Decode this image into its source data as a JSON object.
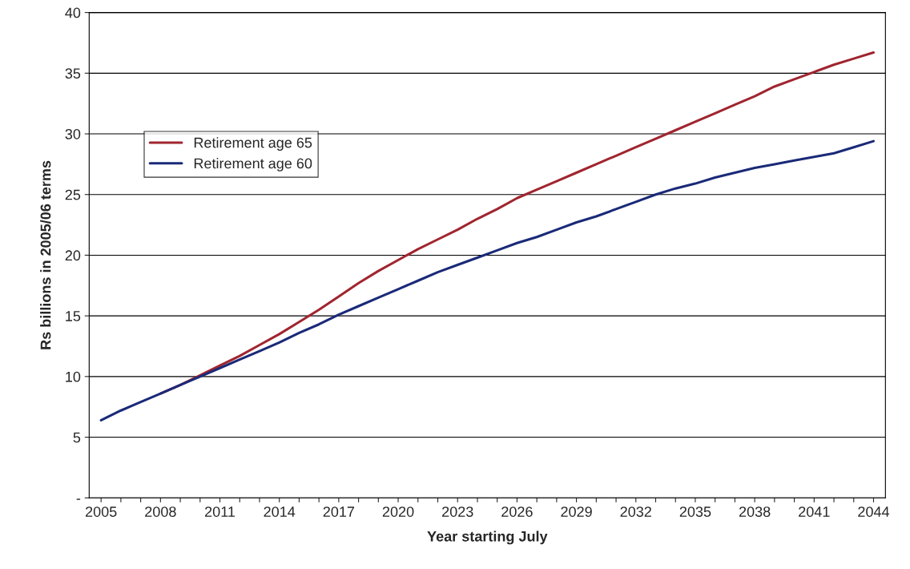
{
  "chart_data": {
    "type": "line",
    "xlabel": "Year starting July",
    "ylabel": "Rs billions in 2005/06 terms",
    "categories": [
      "2005",
      null,
      null,
      "2008",
      null,
      null,
      "2011",
      null,
      null,
      "2014",
      null,
      null,
      "2017",
      null,
      null,
      "2020",
      null,
      null,
      "2023",
      null,
      null,
      "2026",
      null,
      null,
      "2029",
      null,
      null,
      "2032",
      null,
      null,
      "2035",
      null,
      null,
      "2038",
      null,
      null,
      "2041",
      null,
      null,
      "2044"
    ],
    "series": [
      {
        "name": "Retirement age 65",
        "color": "#a0252f",
        "values": [
          null,
          null,
          null,
          8.6,
          9.3,
          10.1,
          10.9,
          11.7,
          12.6,
          13.5,
          14.5,
          15.5,
          16.6,
          17.7,
          18.7,
          19.6,
          20.5,
          21.3,
          22.1,
          23.0,
          23.8,
          24.7,
          25.4,
          26.1,
          26.8,
          27.5,
          28.2,
          28.9,
          29.6,
          30.3,
          31.0,
          31.7,
          32.4,
          33.1,
          33.9,
          34.5,
          35.1,
          35.7,
          36.2,
          36.7
        ]
      },
      {
        "name": "Retirement age 60",
        "color": "#1a2a78",
        "values": [
          6.4,
          7.2,
          7.9,
          8.6,
          9.3,
          10.0,
          10.7,
          11.4,
          12.1,
          12.8,
          13.6,
          14.3,
          15.1,
          15.8,
          16.5,
          17.2,
          17.9,
          18.6,
          19.2,
          19.8,
          20.4,
          21.0,
          21.5,
          22.1,
          22.7,
          23.2,
          23.8,
          24.4,
          25.0,
          25.5,
          25.9,
          26.4,
          26.8,
          27.2,
          27.5,
          27.8,
          28.1,
          28.4,
          28.9,
          29.4
        ]
      }
    ],
    "ylim": [
      0,
      40
    ],
    "yticks": [
      {
        "value": 0,
        "label": "-"
      },
      5,
      10,
      15,
      20,
      25,
      30,
      35,
      40
    ],
    "grid": "y",
    "legend": "top left",
    "marker": "none",
    "line_style": "solid"
  }
}
